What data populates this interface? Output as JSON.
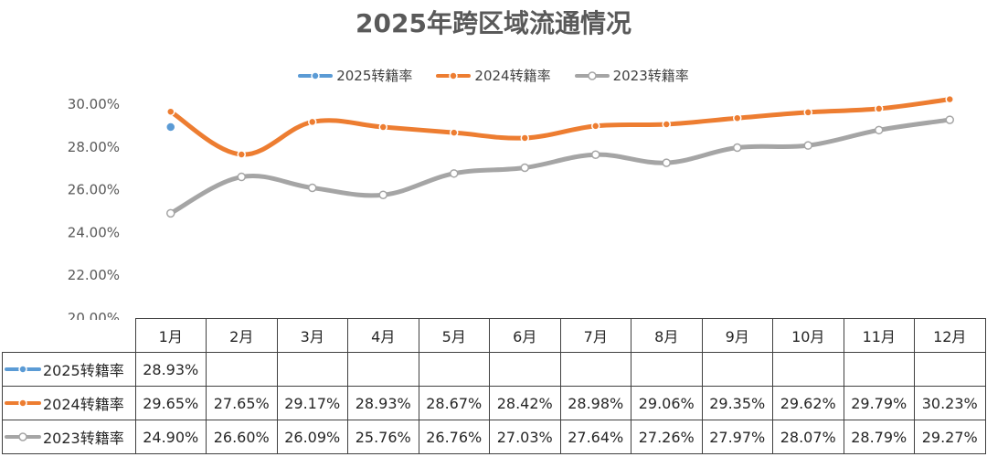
{
  "title": "2025年跨区域流通情况",
  "colors": {
    "s2025": "#5b9bd5",
    "s2024": "#ed7d31",
    "s2023": "#a5a5a5"
  },
  "chart_data": {
    "type": "line",
    "title": "2025年跨区域流通情况",
    "categories": [
      "1月",
      "2月",
      "3月",
      "4月",
      "5月",
      "6月",
      "7月",
      "8月",
      "9月",
      "10月",
      "11月",
      "12月"
    ],
    "y_tick_labels": [
      "30.00%",
      "28.00%",
      "26.00%",
      "24.00%",
      "22.00%",
      "20.00%"
    ],
    "ylim": [
      20,
      30
    ],
    "legend_position": "top",
    "series": [
      {
        "name": "2025转籍率",
        "color": "#5b9bd5",
        "values": [
          28.93,
          null,
          null,
          null,
          null,
          null,
          null,
          null,
          null,
          null,
          null,
          null
        ],
        "labels": [
          "28.93%",
          "",
          "",
          "",
          "",
          "",
          "",
          "",
          "",
          "",
          "",
          ""
        ]
      },
      {
        "name": "2024转籍率",
        "color": "#ed7d31",
        "values": [
          29.65,
          27.65,
          29.17,
          28.93,
          28.67,
          28.42,
          28.98,
          29.06,
          29.35,
          29.62,
          29.79,
          30.23
        ],
        "labels": [
          "29.65%",
          "27.65%",
          "29.17%",
          "28.93%",
          "28.67%",
          "28.42%",
          "28.98%",
          "29.06%",
          "29.35%",
          "29.62%",
          "29.79%",
          "30.23%"
        ]
      },
      {
        "name": "2023转籍率",
        "color": "#a5a5a5",
        "values": [
          24.9,
          26.6,
          26.09,
          25.76,
          26.76,
          27.03,
          27.64,
          27.26,
          27.97,
          28.07,
          28.79,
          29.27
        ],
        "labels": [
          "24.90%",
          "26.60%",
          "26.09%",
          "25.76%",
          "26.76%",
          "27.03%",
          "27.64%",
          "27.26%",
          "27.97%",
          "28.07%",
          "28.79%",
          "29.27%"
        ]
      }
    ]
  }
}
